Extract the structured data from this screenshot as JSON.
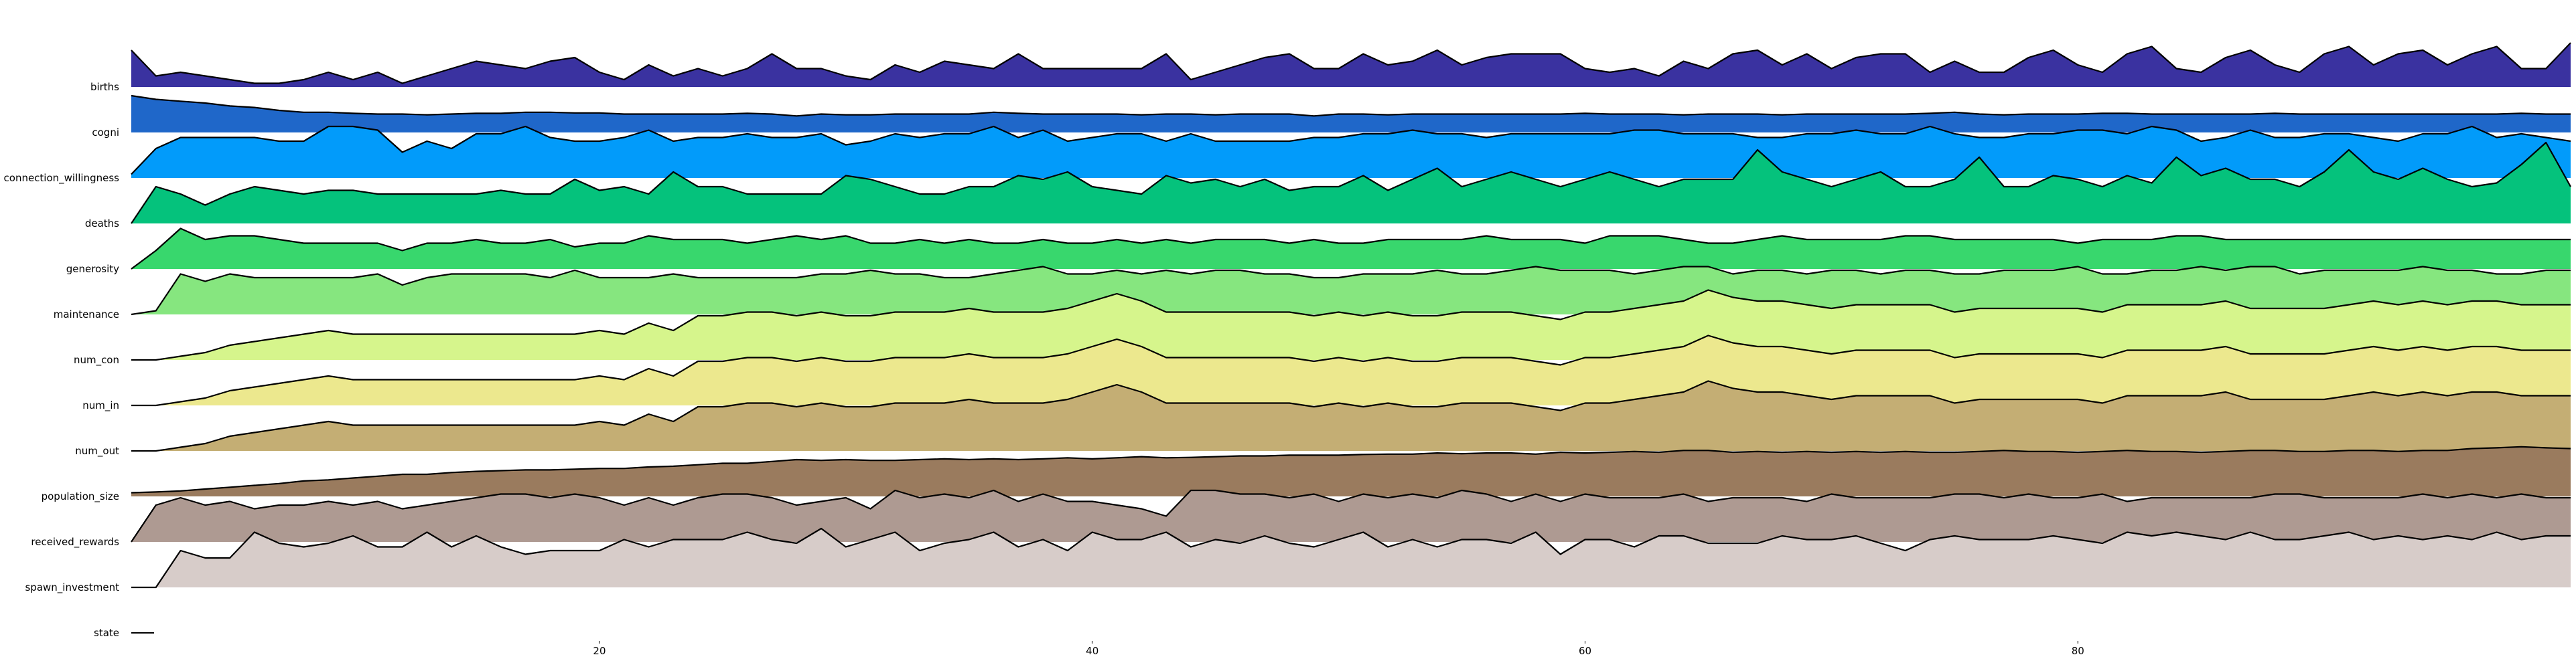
{
  "chart_data": {
    "type": "area",
    "title": "",
    "xlabel": "",
    "ylabel": "",
    "xlim": [
      1,
      100
    ],
    "xticks": [
      20,
      40,
      60,
      80
    ],
    "grid": false,
    "legend": "none",
    "series": [
      {
        "name": "births",
        "color": "#3a32a0",
        "values": [
          1.0,
          0.3,
          0.4,
          0.3,
          0.2,
          0.1,
          0.1,
          0.2,
          0.4,
          0.2,
          0.4,
          0.1,
          0.3,
          0.5,
          0.7,
          0.6,
          0.5,
          0.7,
          0.8,
          0.4,
          0.2,
          0.6,
          0.3,
          0.5,
          0.3,
          0.5,
          0.9,
          0.5,
          0.5,
          0.3,
          0.2,
          0.6,
          0.4,
          0.7,
          0.6,
          0.5,
          0.9,
          0.5,
          0.5,
          0.5,
          0.5,
          0.5,
          0.9,
          0.2,
          0.4,
          0.6,
          0.8,
          0.9,
          0.5,
          0.5,
          0.9,
          0.6,
          0.7,
          1.0,
          0.6,
          0.8,
          0.9,
          0.9,
          0.9,
          0.5,
          0.4,
          0.5,
          0.3,
          0.7,
          0.5,
          0.9,
          1.0,
          0.6,
          0.9,
          0.5,
          0.8,
          0.9,
          0.9,
          0.4,
          0.7,
          0.4,
          0.4,
          0.8,
          1.0,
          0.6,
          0.4,
          0.9,
          1.1,
          0.5,
          0.4,
          0.8,
          1.0,
          0.6,
          0.4,
          0.9,
          1.1,
          0.6,
          0.9,
          1.0,
          0.6,
          0.9,
          1.1,
          0.5,
          0.5,
          1.2
        ]
      },
      {
        "name": "cogni",
        "color": "#1f67c9",
        "values": [
          1.0,
          0.9,
          0.85,
          0.8,
          0.72,
          0.68,
          0.6,
          0.55,
          0.55,
          0.52,
          0.5,
          0.5,
          0.48,
          0.5,
          0.52,
          0.52,
          0.55,
          0.55,
          0.53,
          0.53,
          0.5,
          0.5,
          0.5,
          0.5,
          0.5,
          0.52,
          0.5,
          0.45,
          0.5,
          0.48,
          0.48,
          0.5,
          0.5,
          0.5,
          0.5,
          0.55,
          0.52,
          0.5,
          0.5,
          0.5,
          0.5,
          0.48,
          0.5,
          0.5,
          0.48,
          0.5,
          0.5,
          0.5,
          0.45,
          0.5,
          0.5,
          0.48,
          0.5,
          0.5,
          0.5,
          0.5,
          0.5,
          0.5,
          0.5,
          0.52,
          0.5,
          0.5,
          0.5,
          0.48,
          0.5,
          0.5,
          0.5,
          0.48,
          0.5,
          0.5,
          0.5,
          0.5,
          0.5,
          0.52,
          0.55,
          0.5,
          0.48,
          0.5,
          0.5,
          0.5,
          0.52,
          0.52,
          0.5,
          0.5,
          0.5,
          0.5,
          0.5,
          0.52,
          0.5,
          0.5,
          0.5,
          0.5,
          0.5,
          0.5,
          0.5,
          0.5,
          0.5,
          0.52,
          0.5,
          0.5
        ]
      },
      {
        "name": "connection_willingness",
        "color": "#029bfa",
        "values": [
          0.1,
          0.8,
          1.1,
          1.1,
          1.1,
          1.1,
          1.0,
          1.0,
          1.4,
          1.4,
          1.3,
          0.7,
          1.0,
          0.8,
          1.2,
          1.2,
          1.4,
          1.1,
          1.0,
          1.0,
          1.1,
          1.3,
          1.0,
          1.1,
          1.1,
          1.2,
          1.1,
          1.1,
          1.2,
          0.9,
          1.0,
          1.2,
          1.1,
          1.2,
          1.2,
          1.4,
          1.1,
          1.3,
          1.0,
          1.1,
          1.2,
          1.2,
          1.0,
          1.2,
          1.0,
          1.0,
          1.0,
          1.0,
          1.1,
          1.1,
          1.2,
          1.2,
          1.3,
          1.2,
          1.2,
          1.1,
          1.2,
          1.2,
          1.2,
          1.2,
          1.2,
          1.3,
          1.3,
          1.2,
          1.2,
          1.2,
          1.1,
          1.1,
          1.2,
          1.2,
          1.3,
          1.2,
          1.2,
          1.4,
          1.2,
          1.1,
          1.1,
          1.2,
          1.2,
          1.3,
          1.3,
          1.2,
          1.4,
          1.3,
          1.0,
          1.1,
          1.3,
          1.1,
          1.1,
          1.2,
          1.2,
          1.1,
          1.0,
          1.2,
          1.2,
          1.4,
          1.1,
          1.2,
          1.1,
          1.0
        ]
      },
      {
        "name": "deaths",
        "color": "#05c27c",
        "values": [
          0.0,
          1.0,
          0.8,
          0.5,
          0.8,
          1.0,
          0.9,
          0.8,
          0.9,
          0.9,
          0.8,
          0.8,
          0.8,
          0.8,
          0.8,
          0.9,
          0.8,
          0.8,
          1.2,
          0.9,
          1.0,
          0.8,
          1.4,
          1.0,
          1.0,
          0.8,
          0.8,
          0.8,
          0.8,
          1.3,
          1.2,
          1.0,
          0.8,
          0.8,
          1.0,
          1.0,
          1.3,
          1.2,
          1.4,
          1.0,
          0.9,
          0.8,
          1.3,
          1.1,
          1.2,
          1.0,
          1.2,
          0.9,
          1.0,
          1.0,
          1.3,
          0.9,
          1.2,
          1.5,
          1.0,
          1.2,
          1.4,
          1.2,
          1.0,
          1.2,
          1.4,
          1.2,
          1.0,
          1.2,
          1.2,
          1.2,
          2.0,
          1.4,
          1.2,
          1.0,
          1.2,
          1.4,
          1.0,
          1.0,
          1.2,
          1.8,
          1.0,
          1.0,
          1.3,
          1.2,
          1.0,
          1.3,
          1.1,
          1.8,
          1.3,
          1.5,
          1.2,
          1.2,
          1.0,
          1.4,
          2.0,
          1.4,
          1.2,
          1.5,
          1.2,
          1.0,
          1.1,
          1.6,
          2.2,
          1.0
        ]
      },
      {
        "name": "generosity",
        "color": "#38d76d",
        "values": [
          0.0,
          0.5,
          1.1,
          0.8,
          0.9,
          0.9,
          0.8,
          0.7,
          0.7,
          0.7,
          0.7,
          0.5,
          0.7,
          0.7,
          0.8,
          0.7,
          0.7,
          0.8,
          0.6,
          0.7,
          0.7,
          0.9,
          0.8,
          0.8,
          0.8,
          0.7,
          0.8,
          0.9,
          0.8,
          0.9,
          0.7,
          0.7,
          0.8,
          0.7,
          0.8,
          0.7,
          0.7,
          0.8,
          0.7,
          0.7,
          0.8,
          0.7,
          0.8,
          0.7,
          0.8,
          0.8,
          0.8,
          0.7,
          0.8,
          0.7,
          0.7,
          0.8,
          0.8,
          0.8,
          0.8,
          0.9,
          0.8,
          0.8,
          0.8,
          0.7,
          0.9,
          0.9,
          0.9,
          0.8,
          0.7,
          0.7,
          0.8,
          0.9,
          0.8,
          0.8,
          0.8,
          0.8,
          0.9,
          0.9,
          0.8,
          0.8,
          0.8,
          0.8,
          0.8,
          0.7,
          0.8,
          0.8,
          0.8,
          0.9,
          0.9,
          0.8,
          0.8,
          0.8,
          0.8,
          0.8,
          0.8,
          0.8,
          0.8,
          0.8,
          0.8,
          0.8,
          0.8,
          0.8,
          0.8,
          0.8
        ]
      },
      {
        "name": "maintenance",
        "color": "#86e67f",
        "values": [
          0.0,
          0.1,
          1.1,
          0.9,
          1.1,
          1.0,
          1.0,
          1.0,
          1.0,
          1.0,
          1.1,
          0.8,
          1.0,
          1.1,
          1.1,
          1.1,
          1.1,
          1.0,
          1.2,
          1.0,
          1.0,
          1.0,
          1.1,
          1.0,
          1.0,
          1.0,
          1.0,
          1.0,
          1.1,
          1.1,
          1.2,
          1.1,
          1.1,
          1.0,
          1.0,
          1.1,
          1.2,
          1.3,
          1.1,
          1.1,
          1.2,
          1.1,
          1.2,
          1.1,
          1.2,
          1.2,
          1.1,
          1.1,
          1.0,
          1.0,
          1.1,
          1.1,
          1.1,
          1.2,
          1.1,
          1.1,
          1.2,
          1.3,
          1.2,
          1.2,
          1.2,
          1.1,
          1.2,
          1.3,
          1.3,
          1.1,
          1.2,
          1.2,
          1.1,
          1.2,
          1.2,
          1.1,
          1.2,
          1.2,
          1.1,
          1.1,
          1.2,
          1.2,
          1.2,
          1.3,
          1.1,
          1.1,
          1.2,
          1.2,
          1.3,
          1.2,
          1.3,
          1.3,
          1.1,
          1.2,
          1.2,
          1.2,
          1.2,
          1.3,
          1.2,
          1.2,
          1.1,
          1.1,
          1.2,
          1.2
        ]
      },
      {
        "name": "num_con",
        "color": "#d6f58c",
        "values": [
          0.0,
          0.0,
          0.1,
          0.2,
          0.4,
          0.5,
          0.6,
          0.7,
          0.8,
          0.7,
          0.7,
          0.7,
          0.7,
          0.7,
          0.7,
          0.7,
          0.7,
          0.7,
          0.7,
          0.8,
          0.7,
          1.0,
          0.8,
          1.2,
          1.2,
          1.3,
          1.3,
          1.2,
          1.3,
          1.2,
          1.2,
          1.3,
          1.3,
          1.3,
          1.4,
          1.3,
          1.3,
          1.3,
          1.4,
          1.6,
          1.8,
          1.6,
          1.3,
          1.3,
          1.3,
          1.3,
          1.3,
          1.3,
          1.2,
          1.3,
          1.2,
          1.3,
          1.2,
          1.2,
          1.3,
          1.3,
          1.3,
          1.2,
          1.1,
          1.3,
          1.3,
          1.4,
          1.5,
          1.6,
          1.9,
          1.7,
          1.6,
          1.6,
          1.5,
          1.4,
          1.5,
          1.5,
          1.5,
          1.5,
          1.3,
          1.4,
          1.4,
          1.4,
          1.4,
          1.4,
          1.3,
          1.5,
          1.5,
          1.5,
          1.5,
          1.6,
          1.4,
          1.4,
          1.4,
          1.4,
          1.5,
          1.6,
          1.5,
          1.6,
          1.5,
          1.6,
          1.6,
          1.5,
          1.5,
          1.5
        ]
      },
      {
        "name": "num_in",
        "color": "#ece88e",
        "values": [
          0.0,
          0.0,
          0.1,
          0.2,
          0.4,
          0.5,
          0.6,
          0.7,
          0.8,
          0.7,
          0.7,
          0.7,
          0.7,
          0.7,
          0.7,
          0.7,
          0.7,
          0.7,
          0.7,
          0.8,
          0.7,
          1.0,
          0.8,
          1.2,
          1.2,
          1.3,
          1.3,
          1.2,
          1.3,
          1.2,
          1.2,
          1.3,
          1.3,
          1.3,
          1.4,
          1.3,
          1.3,
          1.3,
          1.4,
          1.6,
          1.8,
          1.6,
          1.3,
          1.3,
          1.3,
          1.3,
          1.3,
          1.3,
          1.2,
          1.3,
          1.2,
          1.3,
          1.2,
          1.2,
          1.3,
          1.3,
          1.3,
          1.2,
          1.1,
          1.3,
          1.3,
          1.4,
          1.5,
          1.6,
          1.9,
          1.7,
          1.6,
          1.6,
          1.5,
          1.4,
          1.5,
          1.5,
          1.5,
          1.5,
          1.3,
          1.4,
          1.4,
          1.4,
          1.4,
          1.4,
          1.3,
          1.5,
          1.5,
          1.5,
          1.5,
          1.6,
          1.4,
          1.4,
          1.4,
          1.4,
          1.5,
          1.6,
          1.5,
          1.6,
          1.5,
          1.6,
          1.6,
          1.5,
          1.5,
          1.5
        ]
      },
      {
        "name": "num_out",
        "color": "#c4ae74",
        "values": [
          0.0,
          0.0,
          0.1,
          0.2,
          0.4,
          0.5,
          0.6,
          0.7,
          0.8,
          0.7,
          0.7,
          0.7,
          0.7,
          0.7,
          0.7,
          0.7,
          0.7,
          0.7,
          0.7,
          0.8,
          0.7,
          1.0,
          0.8,
          1.2,
          1.2,
          1.3,
          1.3,
          1.2,
          1.3,
          1.2,
          1.2,
          1.3,
          1.3,
          1.3,
          1.4,
          1.3,
          1.3,
          1.3,
          1.4,
          1.6,
          1.8,
          1.6,
          1.3,
          1.3,
          1.3,
          1.3,
          1.3,
          1.3,
          1.2,
          1.3,
          1.2,
          1.3,
          1.2,
          1.2,
          1.3,
          1.3,
          1.3,
          1.2,
          1.1,
          1.3,
          1.3,
          1.4,
          1.5,
          1.6,
          1.9,
          1.7,
          1.6,
          1.6,
          1.5,
          1.4,
          1.5,
          1.5,
          1.5,
          1.5,
          1.3,
          1.4,
          1.4,
          1.4,
          1.4,
          1.4,
          1.3,
          1.5,
          1.5,
          1.5,
          1.5,
          1.6,
          1.4,
          1.4,
          1.4,
          1.4,
          1.5,
          1.6,
          1.5,
          1.6,
          1.5,
          1.6,
          1.6,
          1.5,
          1.5,
          1.5
        ]
      },
      {
        "name": "population_size",
        "color": "#9a7b5e",
        "values": [
          0.1,
          0.12,
          0.15,
          0.2,
          0.25,
          0.3,
          0.35,
          0.42,
          0.45,
          0.5,
          0.55,
          0.6,
          0.6,
          0.65,
          0.68,
          0.7,
          0.72,
          0.72,
          0.74,
          0.76,
          0.76,
          0.8,
          0.82,
          0.86,
          0.9,
          0.9,
          0.95,
          1.0,
          0.98,
          1.0,
          0.98,
          0.98,
          1.0,
          1.02,
          1.0,
          1.02,
          1.0,
          1.02,
          1.05,
          1.02,
          1.05,
          1.08,
          1.05,
          1.06,
          1.08,
          1.1,
          1.1,
          1.12,
          1.12,
          1.12,
          1.14,
          1.15,
          1.15,
          1.18,
          1.16,
          1.18,
          1.18,
          1.15,
          1.2,
          1.18,
          1.2,
          1.22,
          1.2,
          1.25,
          1.25,
          1.2,
          1.22,
          1.2,
          1.22,
          1.2,
          1.22,
          1.2,
          1.22,
          1.2,
          1.2,
          1.22,
          1.25,
          1.22,
          1.22,
          1.2,
          1.22,
          1.25,
          1.22,
          1.22,
          1.2,
          1.22,
          1.25,
          1.25,
          1.22,
          1.22,
          1.25,
          1.25,
          1.22,
          1.25,
          1.25,
          1.3,
          1.32,
          1.35,
          1.32,
          1.3
        ]
      },
      {
        "name": "received_rewards",
        "color": "#ae9a92",
        "values": [
          0.0,
          1.0,
          1.2,
          1.0,
          1.1,
          0.9,
          1.0,
          1.0,
          1.1,
          1.0,
          1.1,
          0.9,
          1.0,
          1.1,
          1.2,
          1.3,
          1.3,
          1.2,
          1.3,
          1.2,
          1.0,
          1.2,
          1.0,
          1.2,
          1.3,
          1.3,
          1.2,
          1.0,
          1.1,
          1.2,
          0.9,
          1.4,
          1.2,
          1.3,
          1.2,
          1.4,
          1.1,
          1.3,
          1.1,
          1.1,
          1.0,
          0.9,
          0.7,
          1.4,
          1.4,
          1.3,
          1.3,
          1.2,
          1.3,
          1.1,
          1.3,
          1.2,
          1.3,
          1.2,
          1.4,
          1.3,
          1.1,
          1.3,
          1.1,
          1.3,
          1.2,
          1.2,
          1.2,
          1.3,
          1.1,
          1.2,
          1.2,
          1.2,
          1.1,
          1.3,
          1.2,
          1.2,
          1.2,
          1.2,
          1.3,
          1.3,
          1.2,
          1.3,
          1.2,
          1.2,
          1.3,
          1.1,
          1.2,
          1.2,
          1.2,
          1.2,
          1.2,
          1.3,
          1.3,
          1.2,
          1.2,
          1.2,
          1.2,
          1.3,
          1.2,
          1.3,
          1.2,
          1.3,
          1.2,
          1.2
        ]
      },
      {
        "name": "spawn_investment",
        "color": "#d7ccc9",
        "values": [
          0.0,
          0.0,
          1.0,
          0.8,
          0.8,
          1.5,
          1.2,
          1.1,
          1.2,
          1.4,
          1.1,
          1.1,
          1.5,
          1.1,
          1.4,
          1.1,
          0.9,
          1.0,
          1.0,
          1.0,
          1.3,
          1.1,
          1.3,
          1.3,
          1.3,
          1.5,
          1.3,
          1.2,
          1.6,
          1.1,
          1.3,
          1.5,
          1.0,
          1.2,
          1.3,
          1.5,
          1.1,
          1.3,
          1.0,
          1.5,
          1.3,
          1.3,
          1.5,
          1.1,
          1.3,
          1.2,
          1.4,
          1.2,
          1.1,
          1.3,
          1.5,
          1.1,
          1.3,
          1.1,
          1.3,
          1.3,
          1.2,
          1.5,
          0.9,
          1.3,
          1.3,
          1.1,
          1.4,
          1.4,
          1.2,
          1.2,
          1.2,
          1.4,
          1.3,
          1.3,
          1.4,
          1.2,
          1.0,
          1.3,
          1.4,
          1.3,
          1.3,
          1.3,
          1.4,
          1.3,
          1.2,
          1.5,
          1.4,
          1.5,
          1.4,
          1.3,
          1.5,
          1.3,
          1.3,
          1.4,
          1.5,
          1.3,
          1.4,
          1.3,
          1.4,
          1.3,
          1.5,
          1.3,
          1.4,
          1.4
        ]
      },
      {
        "name": "state",
        "color": "#ffffff",
        "values": []
      }
    ]
  }
}
